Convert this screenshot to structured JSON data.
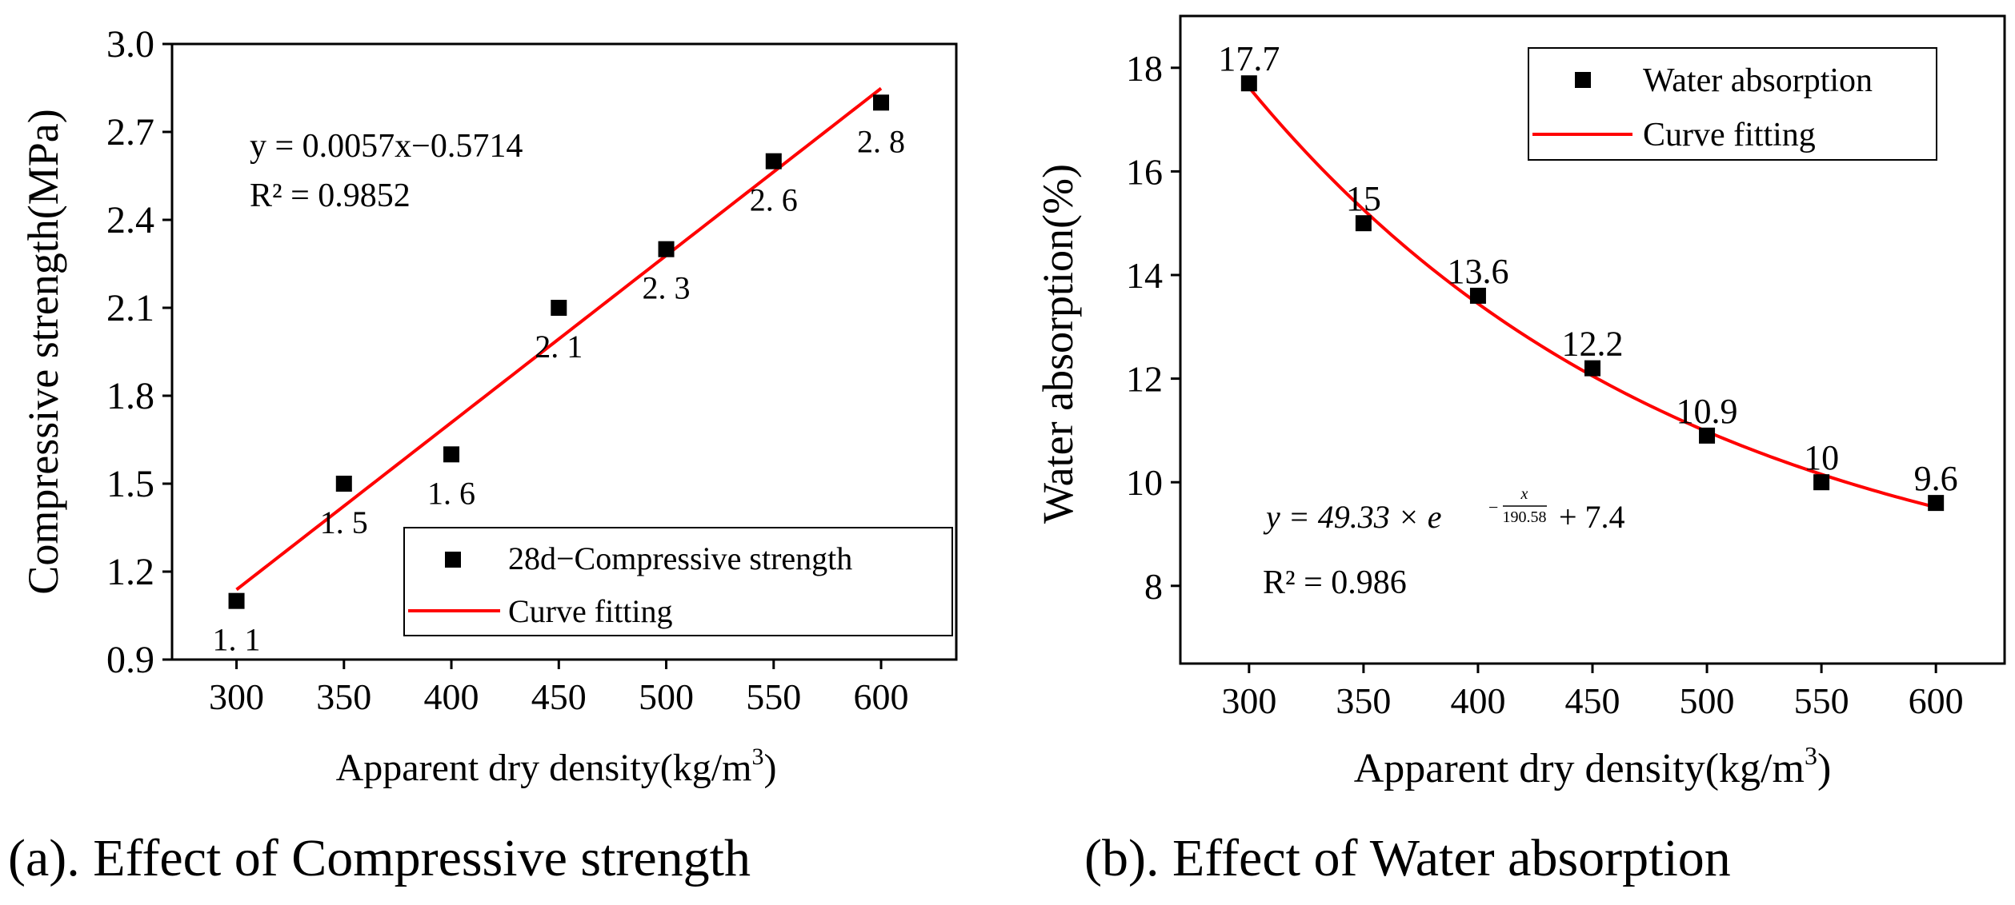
{
  "chart_data": [
    {
      "type": "scatter",
      "title": "",
      "caption": "(a). Effect of Compressive  strength",
      "xlabel": "Apparent dry density(kg/m",
      "xlabel_sup": "3",
      "xlabel_close": ")",
      "ylabel": "Compressive strength(MPa)",
      "xlim": [
        270,
        635
      ],
      "ylim": [
        0.9,
        3.0
      ],
      "xticks": [
        300,
        350,
        400,
        450,
        500,
        550,
        600
      ],
      "yticks": [
        0.9,
        1.2,
        1.5,
        1.8,
        2.1,
        2.4,
        2.7,
        3.0
      ],
      "ytick_labels": [
        "0.9",
        "1.2",
        "1.5",
        "1.8",
        "2.1",
        "2.4",
        "2.7",
        "3.0"
      ],
      "grid": false,
      "legend_position": "bottom-right",
      "equation": "y = 0.0057x−0.5714",
      "r2": "R² = 0.9852",
      "series": [
        {
          "name": "28d−Compressive strength",
          "kind": "points",
          "marker": "square",
          "color": "#000000",
          "x": [
            300,
            350,
            400,
            450,
            500,
            550,
            600
          ],
          "y": [
            1.1,
            1.5,
            1.6,
            2.1,
            2.3,
            2.6,
            2.8
          ],
          "labels": [
            "1. 1",
            "1. 5",
            "1. 6",
            "2. 1",
            "2. 3",
            "2. 6",
            "2. 8"
          ]
        },
        {
          "name": "Curve fitting",
          "kind": "linear",
          "color": "#ff0000",
          "slope": 0.0057,
          "intercept": -0.5714,
          "x_range": [
            300,
            600
          ]
        }
      ]
    },
    {
      "type": "scatter",
      "title": "",
      "caption": "(b). Effect of Water absorption",
      "xlabel": "Apparent dry density(kg/m",
      "xlabel_sup": "3",
      "xlabel_close": ")",
      "ylabel": "Water absorption(%)",
      "xlim": [
        270,
        630
      ],
      "ylim": [
        6.5,
        19.0
      ],
      "xticks": [
        300,
        350,
        400,
        450,
        500,
        550,
        600
      ],
      "yticks": [
        8,
        10,
        12,
        14,
        16,
        18
      ],
      "ytick_labels": [
        "8",
        "10",
        "12",
        "14",
        "16",
        "18"
      ],
      "grid": false,
      "legend_position": "top-right",
      "equation_parts": {
        "lhs": "y = 49.33 × e",
        "exp_num": "x",
        "exp_den": "190.58",
        "tail": "+ 7.4"
      },
      "r2": "R² = 0.986",
      "series": [
        {
          "name": "Water absorption",
          "kind": "points",
          "marker": "square",
          "color": "#000000",
          "x": [
            300,
            350,
            400,
            450,
            500,
            550,
            600
          ],
          "y": [
            17.7,
            15.0,
            13.6,
            12.2,
            10.9,
            10.0,
            9.6
          ],
          "labels": [
            "17.7",
            "15",
            "13.6",
            "12.2",
            "10.9",
            "10",
            "9.6"
          ]
        },
        {
          "name": "Curve fitting",
          "kind": "exponential",
          "color": "#ff0000",
          "a": 49.33,
          "b": 190.58,
          "c": 7.4,
          "x_range": [
            300,
            600
          ]
        }
      ]
    }
  ]
}
